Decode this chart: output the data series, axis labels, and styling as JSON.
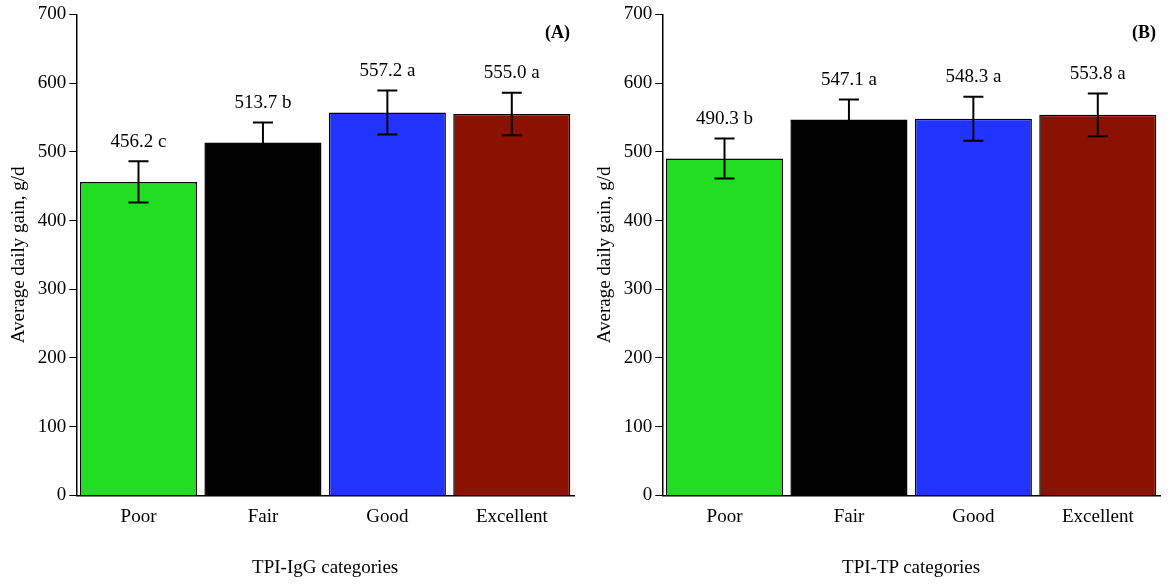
{
  "chart_data": [
    {
      "type": "bar",
      "xlabel": "TPI-IgG categories",
      "ylabel": "Average daily gain, g/d",
      "categories": [
        "Poor",
        "Fair",
        "Good",
        "Excellent"
      ],
      "values": [
        456.2,
        513.7,
        557.2,
        555.0
      ],
      "colors": [
        "#22dd22",
        "#000000",
        "#2233ff",
        "#8b1100"
      ],
      "errors": [
        30,
        29,
        32,
        31
      ],
      "value_labels": [
        "456.2 c",
        "513.7 b",
        "557.2 a",
        "555.0 a"
      ],
      "ylim": [
        0,
        700
      ],
      "yticks": [
        0,
        100,
        200,
        300,
        400,
        500,
        600,
        700
      ],
      "grid": false,
      "legend": false,
      "annotations": [
        "(A)"
      ]
    },
    {
      "type": "bar",
      "xlabel": "TPI-TP categories",
      "ylabel": "Average daily gain, g/d",
      "categories": [
        "Poor",
        "Fair",
        "Good",
        "Excellent"
      ],
      "values": [
        490.3,
        547.1,
        548.3,
        553.8
      ],
      "colors": [
        "#22dd22",
        "#000000",
        "#2233ff",
        "#8b1100"
      ],
      "errors": [
        29,
        29,
        32,
        31
      ],
      "value_labels": [
        "490.3 b",
        "547.1 a",
        "548.3 a",
        "553.8 a"
      ],
      "ylim": [
        0,
        700
      ],
      "yticks": [
        0,
        100,
        200,
        300,
        400,
        500,
        600,
        700
      ],
      "grid": false,
      "legend": false,
      "annotations": [
        "(B)"
      ]
    }
  ]
}
